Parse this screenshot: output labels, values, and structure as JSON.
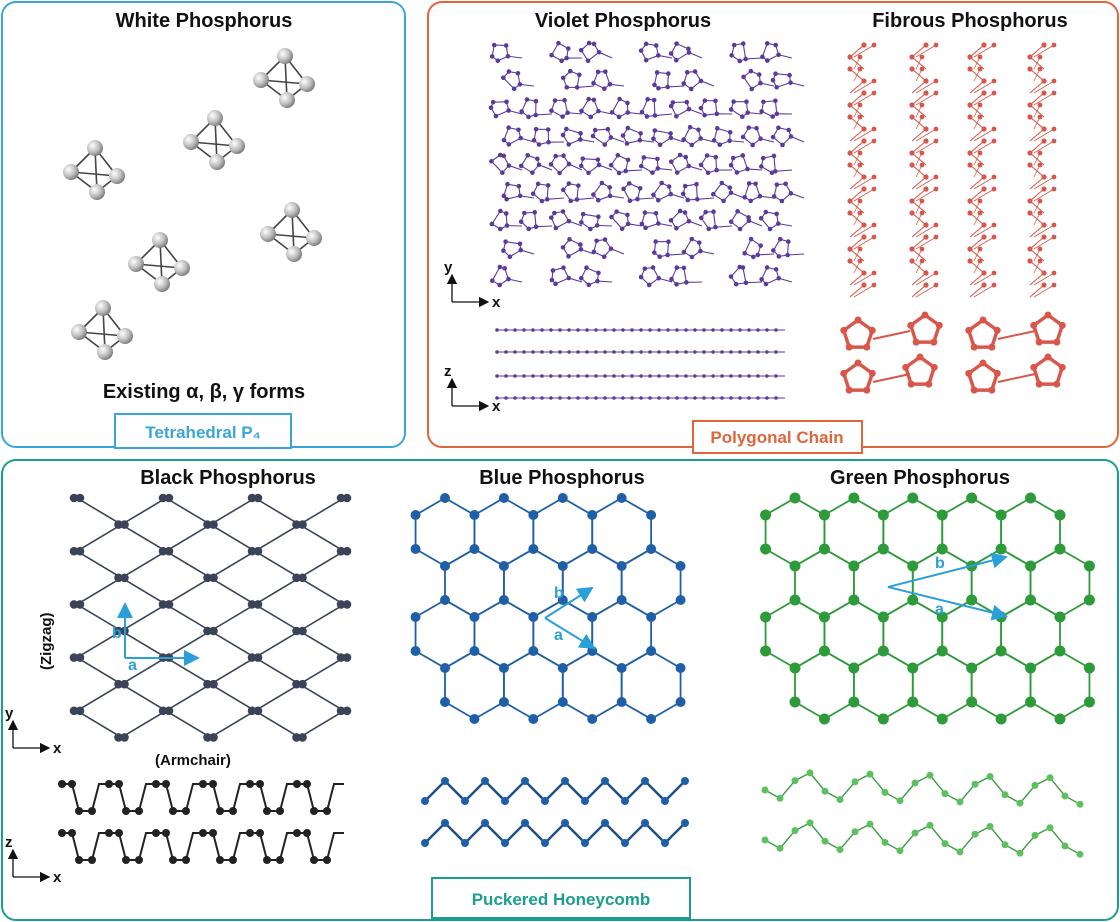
{
  "white": {
    "title": "White Phosphorus",
    "caption": "Existing α, β, γ forms",
    "tag": "Tetrahedral P₄"
  },
  "chain": {
    "titles": [
      "Violet Phosphorus",
      "Fibrous Phosphorus"
    ],
    "tag": "Polygonal Chain",
    "axes": {
      "top": [
        "y",
        "x"
      ],
      "side": [
        "z",
        "x"
      ]
    }
  },
  "honeycomb": {
    "titles": [
      "Black Phosphorus",
      "Blue Phosphorus",
      "Green Phosphorus"
    ],
    "tag": "Puckered Honeycomb",
    "directions": [
      "(Zigzag)",
      "(Armchair)"
    ],
    "axes": {
      "top": [
        "y",
        "x"
      ],
      "side": [
        "z",
        "x"
      ]
    },
    "vectors": [
      "a",
      "b"
    ]
  }
}
